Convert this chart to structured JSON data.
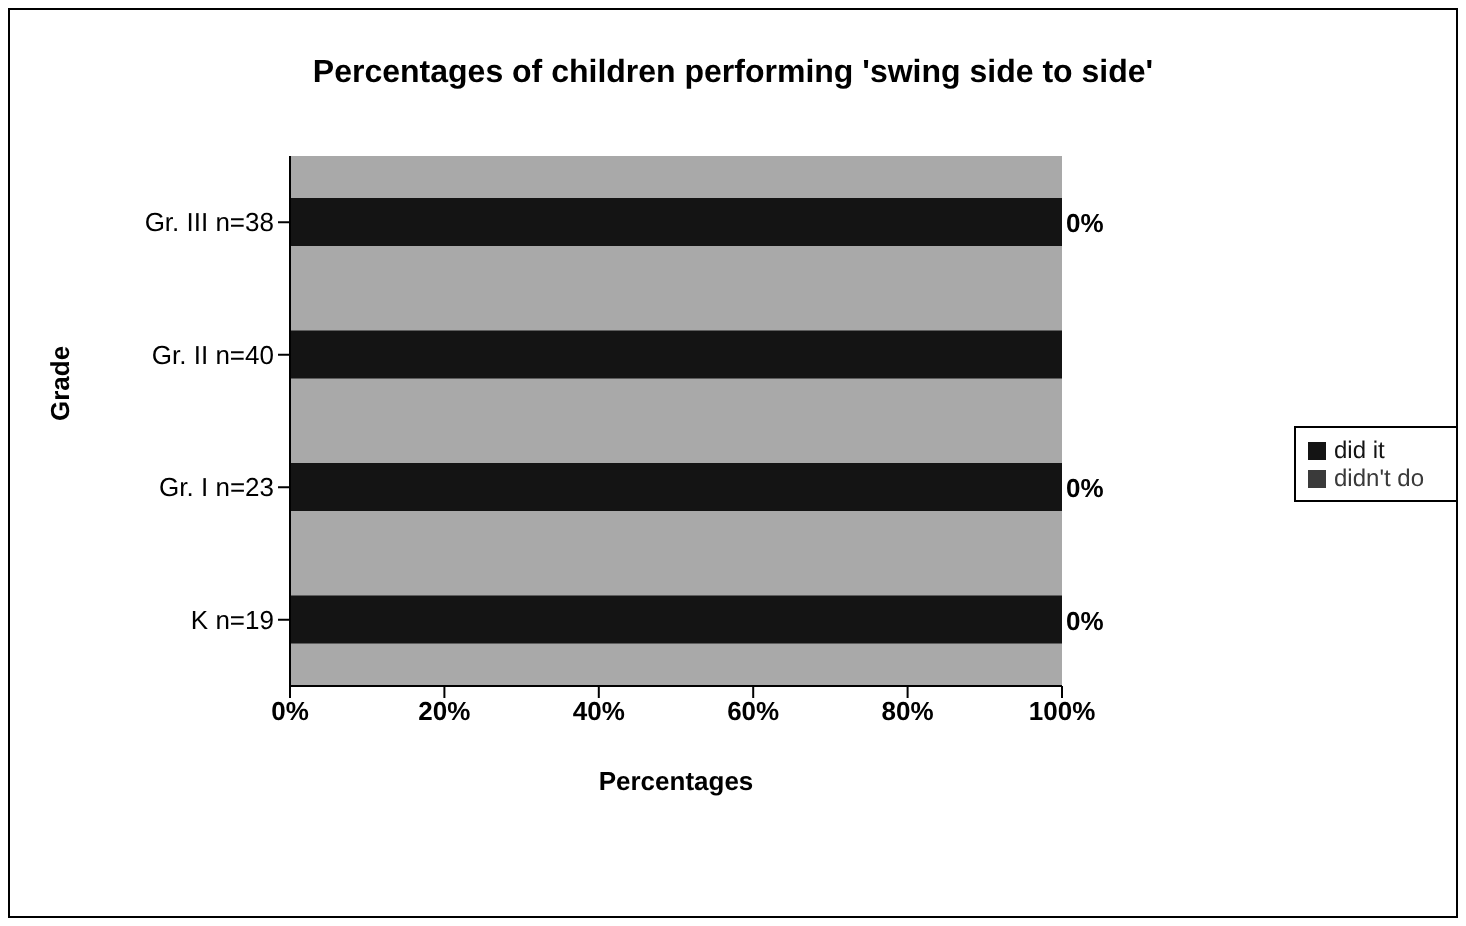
{
  "chart_data": {
    "type": "bar",
    "orientation": "horizontal",
    "stacked": true,
    "title": "Percentages of children performing 'swing side to side'",
    "xlabel": "Percentages",
    "ylabel": "Grade",
    "categories": [
      "Gr. III n=38",
      "Gr. II n=40",
      "Gr. I n=23",
      "K n=19"
    ],
    "series": [
      {
        "name": "did it",
        "color": "#141414",
        "values": [
          100,
          100,
          100,
          100
        ]
      },
      {
        "name": "didn't do",
        "color": "#3a3a3a",
        "values": [
          0,
          0,
          0,
          0
        ],
        "value_labels": [
          "0%",
          null,
          "0%",
          "0%"
        ]
      }
    ],
    "xlim": [
      0,
      100
    ],
    "xticks": [
      {
        "value": 0,
        "label": "0%"
      },
      {
        "value": 20,
        "label": "20%"
      },
      {
        "value": 40,
        "label": "40%"
      },
      {
        "value": 60,
        "label": "60%"
      },
      {
        "value": 80,
        "label": "80%"
      },
      {
        "value": 100,
        "label": "100%"
      }
    ],
    "legend": "right",
    "grid": false
  }
}
